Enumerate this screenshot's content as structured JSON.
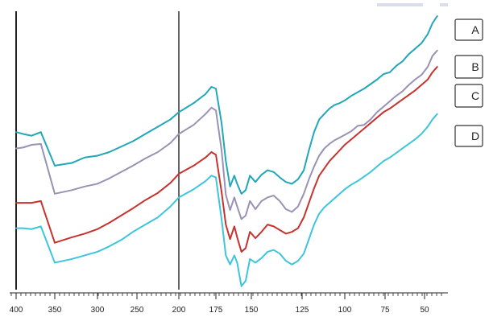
{
  "chart_data": {
    "type": "line",
    "title": "",
    "xlabel": "",
    "ylabel": "",
    "x_ticks": [
      400,
      350,
      300,
      250,
      200,
      175,
      150,
      125,
      100,
      75,
      50
    ],
    "x_tick_labels": [
      "400",
      "350",
      "300",
      "250",
      "200",
      "175",
      "150",
      "125",
      "100",
      "75",
      "50"
    ],
    "x_reversed": true,
    "y_scale": "arbitrary",
    "grid": false,
    "legend_position": "right",
    "series": [
      {
        "name": "A",
        "color": "#20a7b8",
        "x": [
          400,
          391,
          380,
          368,
          350,
          330,
          315,
          300,
          285,
          270,
          255,
          240,
          225,
          210,
          200,
          190,
          182,
          178,
          175,
          171,
          168,
          165,
          162,
          160,
          157,
          154,
          151,
          148,
          145,
          142,
          139,
          136,
          133,
          130,
          127,
          124,
          121,
          118,
          115,
          112,
          109,
          106,
          103,
          100,
          96,
          92,
          88,
          84,
          80,
          76,
          72,
          68,
          64,
          60,
          56,
          52,
          48,
          45,
          42
        ],
        "y": [
          15.2,
          15.0,
          14.8,
          15.2,
          11.5,
          11.8,
          12.4,
          12.6,
          13.0,
          13.6,
          14.2,
          15.0,
          15.8,
          16.6,
          17.4,
          18.4,
          19.4,
          20.2,
          20.0,
          16.2,
          12.0,
          9.2,
          10.4,
          9.5,
          8.4,
          8.8,
          10.4,
          9.7,
          10.5,
          11.0,
          10.8,
          10.2,
          9.7,
          9.5,
          10.0,
          11.0,
          13.2,
          15.2,
          16.6,
          17.2,
          17.8,
          18.2,
          18.4,
          18.7,
          19.2,
          19.6,
          20.0,
          20.5,
          21.0,
          21.6,
          21.8,
          22.5,
          23.0,
          23.8,
          24.4,
          25.0,
          26.0,
          27.2,
          28.0
        ]
      },
      {
        "name": "B",
        "color": "#9a92b4",
        "x": [
          400,
          391,
          380,
          368,
          350,
          330,
          315,
          300,
          285,
          270,
          255,
          240,
          225,
          210,
          200,
          190,
          182,
          178,
          175,
          171,
          168,
          165,
          162,
          160,
          157,
          154,
          151,
          148,
          145,
          142,
          139,
          136,
          133,
          130,
          127,
          124,
          121,
          118,
          115,
          112,
          109,
          106,
          103,
          100,
          96,
          92,
          88,
          84,
          80,
          76,
          72,
          68,
          64,
          60,
          56,
          52,
          48,
          45,
          42
        ],
        "y": [
          13.4,
          13.5,
          13.8,
          13.9,
          8.4,
          8.8,
          9.2,
          9.5,
          10.1,
          10.8,
          11.5,
          12.3,
          13.0,
          14.0,
          15.0,
          16.0,
          17.2,
          17.9,
          17.6,
          13.2,
          8.3,
          6.6,
          8.0,
          7.0,
          5.6,
          6.0,
          7.6,
          6.7,
          7.6,
          8.0,
          8.2,
          7.6,
          6.7,
          6.4,
          7.0,
          8.4,
          10.0,
          11.4,
          12.6,
          13.4,
          13.9,
          14.3,
          14.6,
          14.9,
          15.3,
          15.9,
          16.0,
          16.6,
          17.4,
          18.0,
          18.6,
          19.2,
          19.7,
          20.4,
          21.0,
          21.5,
          22.4,
          23.6,
          24.2
        ]
      },
      {
        "name": "C",
        "color": "#c8322e",
        "x": [
          400,
          391,
          380,
          368,
          350,
          330,
          315,
          300,
          285,
          270,
          255,
          240,
          225,
          210,
          200,
          190,
          182,
          178,
          175,
          171,
          168,
          165,
          162,
          160,
          157,
          154,
          151,
          148,
          145,
          142,
          139,
          136,
          133,
          130,
          127,
          124,
          121,
          118,
          115,
          112,
          109,
          106,
          103,
          100,
          96,
          92,
          88,
          84,
          80,
          76,
          72,
          68,
          64,
          60,
          56,
          52,
          48,
          45,
          42
        ],
        "y": [
          7.4,
          7.4,
          7.4,
          7.6,
          3.0,
          3.6,
          4.0,
          4.5,
          5.2,
          6.0,
          6.8,
          7.7,
          8.5,
          9.6,
          10.6,
          11.5,
          12.4,
          13.0,
          12.7,
          8.6,
          5.0,
          3.4,
          4.8,
          3.6,
          2.0,
          2.4,
          4.2,
          3.5,
          4.2,
          5.0,
          4.8,
          4.4,
          4.0,
          4.2,
          4.6,
          5.8,
          7.4,
          9.0,
          10.4,
          11.2,
          12.0,
          12.6,
          13.2,
          13.8,
          14.4,
          15.0,
          15.6,
          16.2,
          16.8,
          17.4,
          17.8,
          18.3,
          18.8,
          19.3,
          19.8,
          20.4,
          21.0,
          21.8,
          22.4
        ]
      },
      {
        "name": "D",
        "color": "#3cc6dc",
        "x": [
          400,
          391,
          380,
          368,
          350,
          330,
          315,
          300,
          285,
          270,
          255,
          240,
          225,
          210,
          200,
          190,
          182,
          178,
          175,
          171,
          168,
          165,
          162,
          160,
          157,
          154,
          151,
          148,
          145,
          142,
          139,
          136,
          133,
          130,
          127,
          124,
          121,
          118,
          115,
          112,
          109,
          106,
          103,
          100,
          96,
          92,
          88,
          84,
          80,
          76,
          72,
          68,
          64,
          60,
          56,
          52,
          48,
          45,
          42
        ],
        "y": [
          4.6,
          4.6,
          4.5,
          4.8,
          0.8,
          1.2,
          1.6,
          2.0,
          2.6,
          3.3,
          4.2,
          5.0,
          5.8,
          7.0,
          8.0,
          8.9,
          9.8,
          10.4,
          10.2,
          5.6,
          1.6,
          0.6,
          1.6,
          0.8,
          -1.8,
          -1.2,
          1.2,
          0.8,
          1.3,
          2.0,
          2.2,
          1.8,
          1.0,
          0.6,
          1.0,
          1.8,
          3.4,
          5.0,
          6.2,
          6.9,
          7.4,
          7.9,
          8.4,
          8.9,
          9.4,
          9.8,
          10.3,
          10.8,
          11.4,
          12.0,
          12.4,
          12.9,
          13.4,
          13.9,
          14.4,
          15.0,
          15.8,
          16.6,
          17.2
        ]
      }
    ],
    "vertical_markers": [
      400,
      200
    ]
  },
  "colors": {
    "A": "#20a7b8",
    "B": "#9a92b4",
    "C": "#c8322e",
    "D": "#3cc6dc",
    "axis": "#222222"
  },
  "legend": {
    "labels": [
      "A",
      "B",
      "C",
      "D"
    ]
  }
}
